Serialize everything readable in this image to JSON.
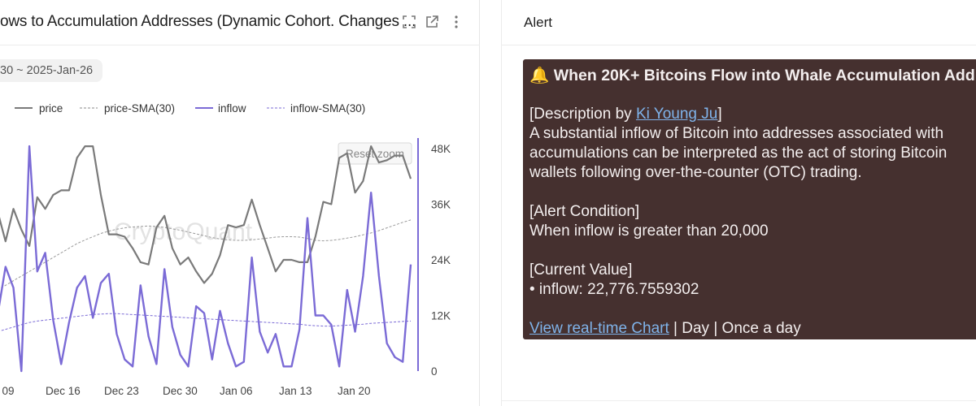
{
  "left_panel": {
    "title": "ows to Accumulation Addresses (Dynamic Cohort. Changes ...",
    "date_range": "30 ~ 2025-Jan-26",
    "watermark": "CryptoQuant",
    "reset_zoom_label": "Reset zoom",
    "icons": [
      "fullscreen-icon",
      "external-link-icon",
      "more-vertical-icon"
    ]
  },
  "chart_data": {
    "type": "line",
    "legend": [
      {
        "name": "price",
        "style": "solid",
        "color": "#7a7a7a"
      },
      {
        "name": "price-SMA(30)",
        "style": "dashed",
        "color": "#8a8a8a"
      },
      {
        "name": "inflow",
        "style": "solid",
        "color": "#7b6bd6"
      },
      {
        "name": "inflow-SMA(30)",
        "style": "dashed",
        "color": "#7b6bd6"
      }
    ],
    "x_ticks": [
      "c 09",
      "Dec 16",
      "Dec 23",
      "Dec 30",
      "Jan 06",
      "Jan 13",
      "Jan 20"
    ],
    "y_right_ticks": [
      "48K",
      "36K",
      "24K",
      "12K",
      "0"
    ],
    "y_right_range": [
      0,
      48000
    ],
    "series": [
      {
        "name": "price",
        "values": [
          34500,
          28000,
          35000,
          30500,
          27000,
          37500,
          35000,
          38000,
          39000,
          39000,
          46000,
          48500,
          48500,
          38000,
          29500,
          29500,
          29000,
          26500,
          23500,
          23000,
          31000,
          33500,
          26500,
          23000,
          24500,
          21500,
          19000,
          21000,
          25000,
          31500,
          31000,
          31500,
          37000,
          31500,
          26500,
          21500,
          24000,
          24000,
          23500,
          23500,
          29000,
          36500,
          36000,
          46000,
          47000,
          38500,
          41000,
          48500,
          45000,
          45500,
          46500,
          46500,
          41500
        ]
      },
      {
        "name": "price-SMA(30)",
        "values": [
          17500,
          18500,
          19500,
          20500,
          21500,
          22500,
          23500,
          24500,
          25500,
          26500,
          27500,
          28300,
          29000,
          29700,
          30200,
          30600,
          30900,
          31100,
          31200,
          31300,
          31200,
          31000,
          30700,
          30400,
          30000,
          29600,
          29200,
          28800,
          28500,
          28300,
          28200,
          28200,
          28300,
          28500,
          28700,
          28900,
          29000,
          29000,
          28900,
          28600,
          28200,
          28100,
          28200,
          28400,
          28700,
          29000,
          29400,
          29800,
          30300,
          30900,
          31500,
          32100,
          32600
        ]
      },
      {
        "name": "inflow",
        "values": [
          12000,
          22500,
          18000,
          0,
          48500,
          21500,
          25500,
          11000,
          1500,
          10500,
          18000,
          20500,
          11500,
          19000,
          21000,
          8000,
          2500,
          1000,
          18500,
          7500,
          1500,
          22000,
          9500,
          3500,
          1000,
          14000,
          12500,
          2500,
          13000,
          6000,
          1000,
          2000,
          24500,
          8500,
          4000,
          8000,
          1000,
          1000,
          9000,
          33000,
          12000,
          12000,
          10000,
          1000,
          17500,
          8500,
          20500,
          38500,
          20500,
          6000,
          3000,
          2000,
          23000
        ]
      },
      {
        "name": "inflow-SMA(30)",
        "values": [
          8500,
          9000,
          9500,
          10000,
          10500,
          10800,
          11000,
          11200,
          11400,
          11600,
          11800,
          12000,
          12200,
          12300,
          12400,
          12400,
          12300,
          12200,
          12100,
          12000,
          11900,
          11800,
          11700,
          11600,
          11500,
          11400,
          11300,
          11200,
          11100,
          11000,
          10900,
          10800,
          10700,
          10600,
          10500,
          10400,
          10300,
          10200,
          10100,
          9900,
          9800,
          9700,
          9700,
          9800,
          9900,
          10000,
          10100,
          10300,
          10400,
          10500,
          10600,
          10700,
          10800
        ]
      }
    ]
  },
  "alert_panel": {
    "title": "Alert",
    "heading": "🔔 When 20K+ Bitcoins Flow into Whale Accumulation Addr",
    "description_prefix": "[Description by ",
    "description_author": "Ki Young Ju",
    "description_suffix": "]",
    "description_lines": [
      "A substantial inflow of Bitcoin into addresses associated with",
      "accumulations can be interpreted as the act of storing Bitcoin",
      "wallets following over-the-counter (OTC) trading."
    ],
    "condition_label": "[Alert Condition]",
    "condition_text": "When inflow is greater than 20,000",
    "current_label": "[Current Value]",
    "current_value": " • inflow: 22,776.7559302",
    "link_text": "View real-time Chart",
    "footer_rest": " | Day | Once a day",
    "colors": {
      "box_bg": "#45302f",
      "link": "#7fb3ea",
      "inflow": "#7b6bd6",
      "price": "#7a7a7a"
    }
  }
}
